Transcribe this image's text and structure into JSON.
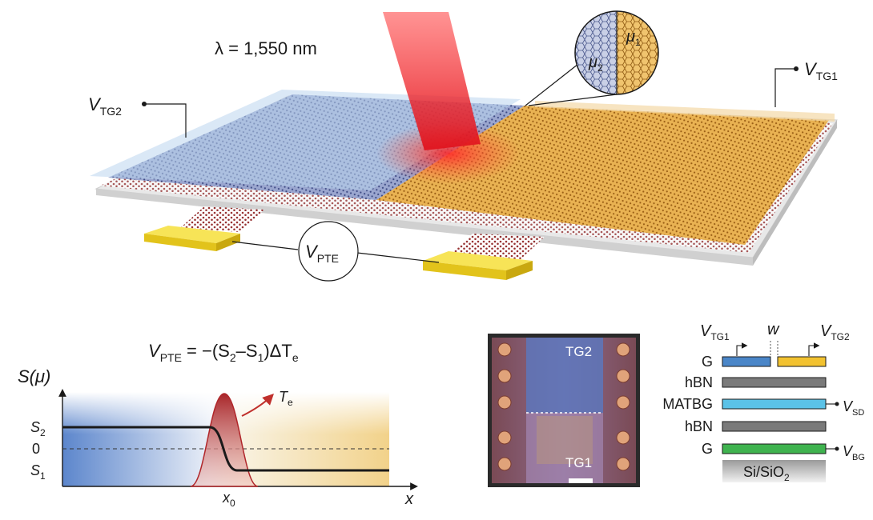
{
  "device": {
    "wavelength": "λ = 1,550 nm",
    "tg1": {
      "main": "V",
      "sub": "TG1"
    },
    "tg2": {
      "main": "V",
      "sub": "TG2"
    },
    "mu1": {
      "main": "μ",
      "sub": "1"
    },
    "mu2": {
      "main": "μ",
      "sub": "2"
    },
    "vpte": {
      "main": "V",
      "sub": "PTE"
    }
  },
  "equation": {
    "lhs_main": "V",
    "lhs_sub": "PTE",
    "eq": " = −(S",
    "s2sub": "2",
    "mid": "–S",
    "s1sub": "1",
    "tail": ")ΔT",
    "tsub": "e"
  },
  "plot": {
    "ylabel": "S(μ)",
    "xlabel": "x",
    "s2": {
      "main": "S",
      "sub": "2"
    },
    "zero": "0",
    "s1": {
      "main": "S",
      "sub": "1"
    },
    "x0": {
      "main": "x",
      "sub": "0"
    },
    "te": {
      "main": "T",
      "sub": "e"
    }
  },
  "micro": {
    "tg2": "TG2",
    "tg1": "TG1"
  },
  "stack": {
    "vtg1": {
      "main": "V",
      "sub": "TG1"
    },
    "w": "w",
    "vtg2": {
      "main": "V",
      "sub": "TG2"
    },
    "layers": [
      "G",
      "hBN",
      "MATBG",
      "hBN",
      "G"
    ],
    "vsd": {
      "main": "V",
      "sub": "SD"
    },
    "vbg": {
      "main": "V",
      "sub": "BG"
    },
    "substrate": "Si/SiO",
    "substrate_sub": "2",
    "colors": {
      "gate_left": "#4a86c8",
      "gate_right": "#f2c230",
      "hbn": "#7a7a7a",
      "matbg": "#5bc2e7",
      "bottom_gate": "#3fb34f"
    }
  }
}
